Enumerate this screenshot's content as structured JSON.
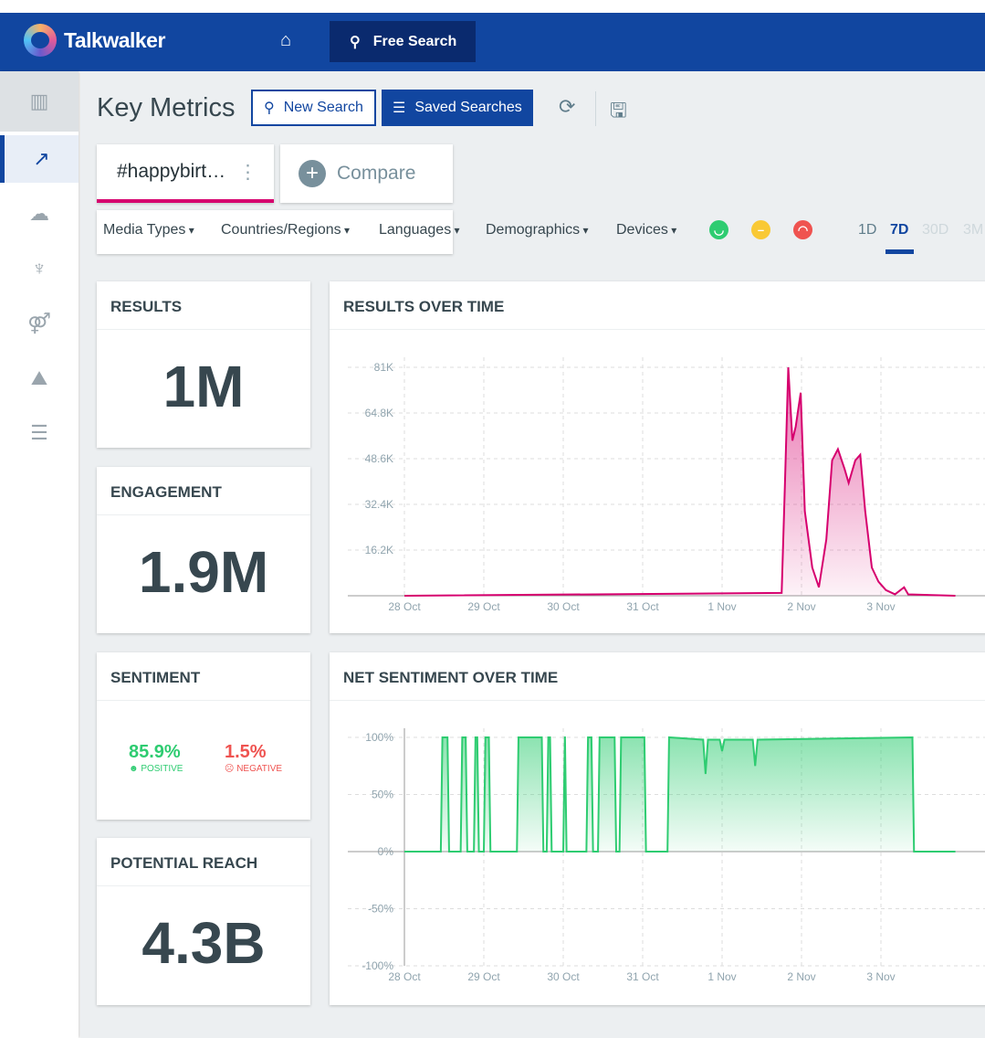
{
  "header": {
    "brand": "Talkwalker",
    "free_search": "Free Search"
  },
  "toolbar": {
    "title": "Key Metrics",
    "new_search": "New Search",
    "saved_searches": "Saved Searches"
  },
  "tabs": [
    {
      "label": "#happybirt…"
    },
    {
      "label": "Compare"
    }
  ],
  "filters": [
    "Media Types",
    "Countries/Regions",
    "Languages",
    "Demographics",
    "Devices"
  ],
  "sentiment_filters": [
    {
      "name": "positive",
      "color": "#2ecc71"
    },
    {
      "name": "neutral",
      "color": "#f9c935"
    },
    {
      "name": "negative",
      "color": "#ef5350"
    }
  ],
  "ranges": [
    "1D",
    "7D",
    "30D",
    "3M"
  ],
  "selected_range": "7D",
  "metrics": {
    "results": {
      "title": "RESULTS",
      "value": "1M"
    },
    "engagement": {
      "title": "ENGAGEMENT",
      "value": "1.9M"
    },
    "sentiment": {
      "title": "SENTIMENT",
      "positive": "85.9%",
      "positive_label": "POSITIVE",
      "negative": "1.5%",
      "negative_label": "NEGATIVE"
    },
    "reach": {
      "title": "POTENTIAL REACH",
      "value": "4.3B"
    }
  },
  "chart_data": [
    {
      "type": "area",
      "title": "RESULTS OVER TIME",
      "color": "#d6006e",
      "x_ticks": [
        "28 Oct",
        "29 Oct",
        "30 Oct",
        "31 Oct",
        "1 Nov",
        "2 Nov",
        "3 Nov"
      ],
      "y_ticks": [
        "16.2K",
        "32.4K",
        "48.6K",
        "64.8K",
        "81K"
      ],
      "ylim": [
        0,
        81000
      ],
      "grid": true,
      "points": [
        [
          "28 Oct 00:00",
          0
        ],
        [
          "1 Nov 18:00",
          1000
        ],
        [
          "1 Nov 19:00",
          40000
        ],
        [
          "1 Nov 20:00",
          81000
        ],
        [
          "1 Nov 21:15",
          55000
        ],
        [
          "1 Nov 22:15",
          60000
        ],
        [
          "1 Nov 23:45",
          72000
        ],
        [
          "2 Nov 01:00",
          30000
        ],
        [
          "2 Nov 03:15",
          10000
        ],
        [
          "2 Nov 05:15",
          3000
        ],
        [
          "2 Nov 07:30",
          20000
        ],
        [
          "2 Nov 09:15",
          48000
        ],
        [
          "2 Nov 11:00",
          52000
        ],
        [
          "2 Nov 13:00",
          45000
        ],
        [
          "2 Nov 14:15",
          40000
        ],
        [
          "2 Nov 16:15",
          48000
        ],
        [
          "2 Nov 17:45",
          50000
        ],
        [
          "2 Nov 19:15",
          30000
        ],
        [
          "2 Nov 21:15",
          10000
        ],
        [
          "2 Nov 23:15",
          5000
        ],
        [
          "3 Nov 01:30",
          2000
        ],
        [
          "3 Nov 04:15",
          500
        ],
        [
          "3 Nov 07:00",
          3000
        ],
        [
          "3 Nov 08:15",
          500
        ],
        [
          "3 Nov 22:30",
          0
        ]
      ]
    },
    {
      "type": "area",
      "title": "NET SENTIMENT OVER TIME",
      "color": "#2ecc71",
      "x_ticks": [
        "28 Oct",
        "29 Oct",
        "30 Oct",
        "31 Oct",
        "1 Nov",
        "2 Nov",
        "3 Nov"
      ],
      "y_ticks": [
        "100%",
        "50%",
        "0%",
        "-50%",
        "-100%"
      ],
      "ylim": [
        -100,
        100
      ],
      "grid": true,
      "pulses": [
        [
          "28 Oct 11:00",
          "28 Oct 13:30"
        ],
        [
          "28 Oct 17:00",
          "28 Oct 19:00"
        ],
        [
          "28 Oct 21:00",
          "28 Oct 22:30"
        ],
        [
          "29 Oct 00:00",
          "29 Oct 02:00"
        ],
        [
          "29 Oct 10:00",
          "29 Oct 18:00"
        ],
        [
          "29 Oct 19:00",
          "29 Oct 20:30"
        ],
        [
          "30 Oct 00:00",
          "30 Oct 01:00"
        ],
        [
          "30 Oct 07:00",
          "30 Oct 09:00"
        ],
        [
          "30 Oct 10:30",
          "30 Oct 16:00"
        ],
        [
          "30 Oct 17:00",
          "31 Oct 01:00"
        ],
        [
          "31 Oct 07:30",
          "3 Nov 10:00"
        ]
      ],
      "dips": [
        [
          "31 Oct 19:00",
          68
        ],
        [
          "1 Nov 00:00",
          88
        ],
        [
          "1 Nov 10:00",
          75
        ]
      ],
      "end": "3 Nov 22:30"
    }
  ]
}
